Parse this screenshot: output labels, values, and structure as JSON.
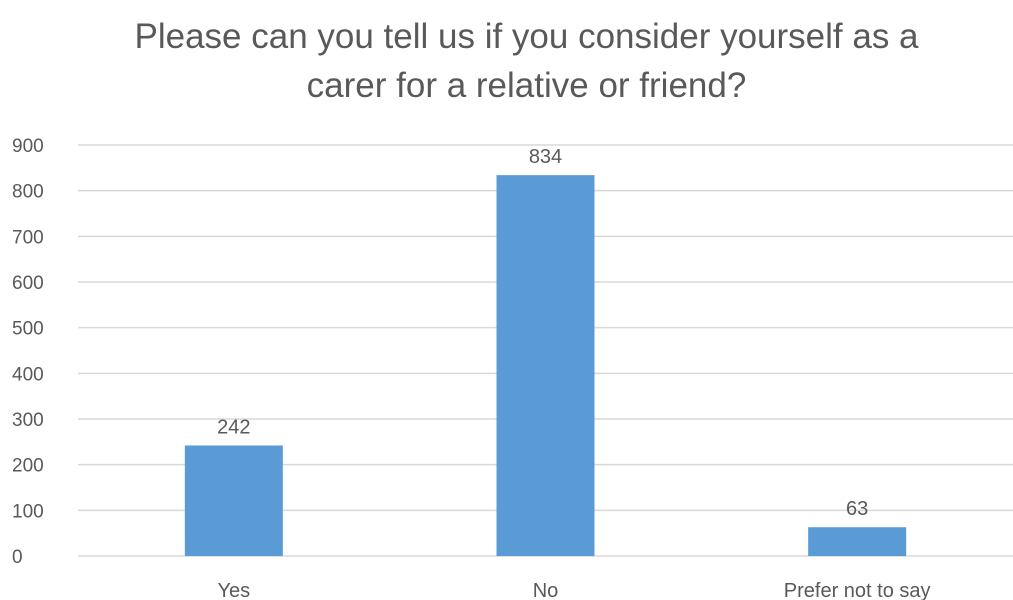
{
  "chart_data": {
    "type": "bar",
    "title_lines": [
      "Please can you tell us if you consider yourself as a",
      "carer for a relative or friend?"
    ],
    "categories": [
      "Yes",
      "No",
      "Prefer not to say"
    ],
    "values": [
      242,
      834,
      63
    ],
    "data_labels": [
      "242",
      "834",
      "63"
    ],
    "yticks": [
      "0",
      "100",
      "200",
      "300",
      "400",
      "500",
      "600",
      "700",
      "800",
      "900"
    ],
    "ylim": [
      0,
      900
    ],
    "grid": true,
    "legend": "none",
    "bar_color": "#5b9bd5",
    "grid_color": "#d9d9d9",
    "text_color": "#595959"
  }
}
